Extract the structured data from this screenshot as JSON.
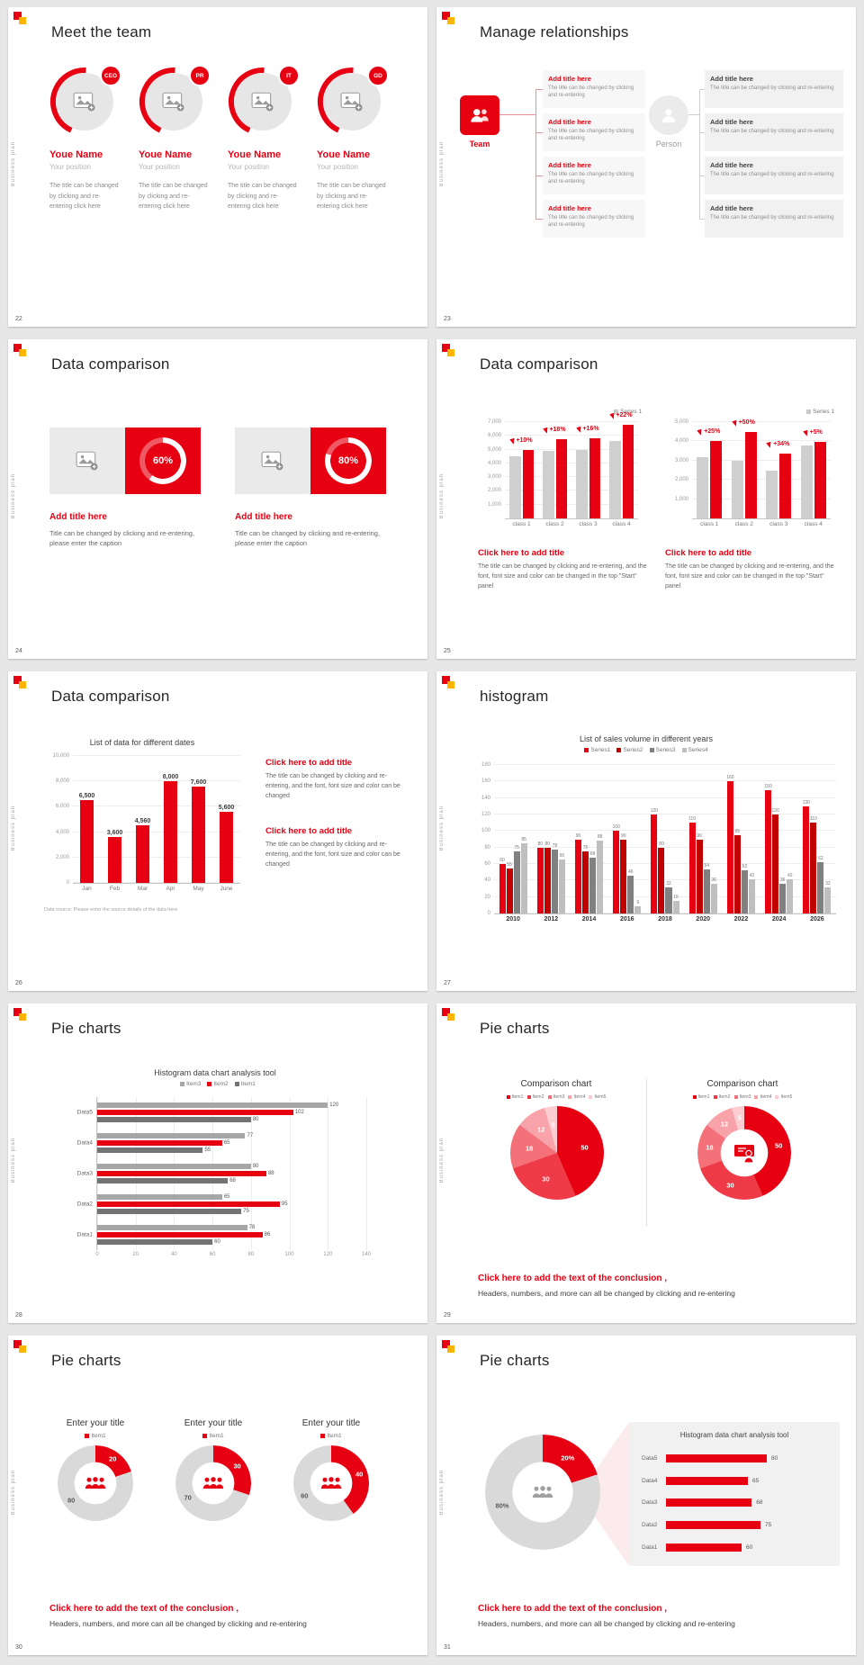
{
  "accent": "#e60012",
  "background": "#e7e7e7",
  "sidebar_label": "Business plan",
  "conclusion": {
    "title": "Click here to add the text of the conclusion ,",
    "body": "Headers, numbers, and more can all be changed by clicking and re-entering"
  },
  "slides": {
    "s22": {
      "page": "22",
      "title": "Meet the team",
      "badges": [
        "CEO",
        "PR",
        "IT",
        "GD"
      ],
      "member_name": "Youe Name",
      "member_position": "Your position",
      "member_caption": "The title can be changed by clicking and re-entering click here"
    },
    "s23": {
      "page": "23",
      "title": "Manage relationships",
      "team_label": "Team",
      "person_label": "Person",
      "block_title": "Add title here",
      "block_caption": "The title can be changed by clicking and re-entering"
    },
    "s24": {
      "page": "24",
      "title": "Data comparison",
      "card_title": "Add title here",
      "card_caption": "Title can be changed by clicking and re-entering, please enter the caption",
      "cards": [
        {
          "percent_label": "60%",
          "ring": {
            "type": "ring",
            "percent": 60
          }
        },
        {
          "percent_label": "80%",
          "ring": {
            "type": "ring",
            "percent": 80
          }
        }
      ]
    },
    "s25": {
      "page": "25",
      "title": "Data comparison",
      "link_title": "Click here to add title",
      "caption": "The title can be changed by clicking and re-entering, and the font, font size and color can be changed in the top \"Start\" panel",
      "charts": [
        {
          "type": "columns",
          "ymax": 7000,
          "yticks": [
            "7,000",
            "6,000",
            "5,000",
            "4,000",
            "3,000",
            "2,000",
            "1,000"
          ],
          "categories": [
            "class 1",
            "class 2",
            "class 3",
            "class 4"
          ],
          "series": [
            {
              "color": "#cfcfcf",
              "values": [
                4500,
                4900,
                5000,
                5600
              ]
            },
            {
              "color": "#e60012",
              "values": [
                4950,
                5780,
                5800,
                6830
              ]
            }
          ],
          "annotations": [
            "+10%",
            "+18%",
            "+16%",
            "+22%"
          ],
          "legend": [
            {
              "label": "Series 1",
              "color": "#c9c9c9"
            }
          ]
        },
        {
          "type": "columns",
          "ymax": 5000,
          "yticks": [
            "5,000",
            "4,000",
            "3,000",
            "2,000",
            "1,000"
          ],
          "categories": [
            "class 1",
            "class 2",
            "class 3",
            "class 4"
          ],
          "series": [
            {
              "color": "#cfcfcf",
              "values": [
                3200,
                3000,
                2500,
                3800
              ]
            },
            {
              "color": "#e60012",
              "values": [
                4000,
                4500,
                3350,
                3990
              ]
            }
          ],
          "annotations": [
            "+25%",
            "+50%",
            "+34%",
            "+5%"
          ],
          "legend": [
            {
              "label": "Series 1",
              "color": "#c9c9c9"
            }
          ]
        }
      ]
    },
    "s26": {
      "page": "26",
      "title": "Data comparison",
      "chart_title": "List of data for different dates",
      "footnote": "Data source: Please enter the source details of the data here",
      "link_title": "Click here to add title",
      "caption": "The title can be changed by clicking and re-entering, and the font, font size and color can be changed",
      "chart": {
        "type": "columns",
        "ymax": 10000,
        "yticks": [
          "10,000",
          "8,000",
          "6,000",
          "4,000",
          "2,000",
          "0"
        ],
        "categories": [
          "Jan",
          "Feb",
          "Mar",
          "Apr",
          "May",
          "June"
        ],
        "series": [
          {
            "color": "#e60012",
            "values": [
              6500,
              3600,
              4560,
              8000,
              7600,
              5600
            ],
            "labels": [
              "6,500",
              "3,600",
              "4,560",
              "8,000",
              "7,600",
              "5,600"
            ]
          }
        ]
      }
    },
    "s27": {
      "page": "27",
      "title": "histogram",
      "chart_title": "List of sales volume in different years",
      "legend": [
        {
          "label": "Series1",
          "color": "#e60012"
        },
        {
          "label": "Series2",
          "color": "#c00000"
        },
        {
          "label": "Series3",
          "color": "#808080"
        },
        {
          "label": "Series4",
          "color": "#bfbfbf"
        }
      ],
      "chart": {
        "type": "columns",
        "ymax": 180,
        "show_labels": true,
        "yticks": [
          "180",
          "160",
          "140",
          "120",
          "100",
          "80",
          "60",
          "40",
          "20",
          "0"
        ],
        "categories": [
          "2010",
          "2012",
          "2014",
          "2016",
          "2018",
          "2020",
          "2022",
          "2024",
          "2026"
        ],
        "series": [
          {
            "color": "#e60012",
            "values": [
              60,
              80,
              90,
              100,
              120,
              110,
              160,
              150,
              130
            ]
          },
          {
            "color": "#c00000",
            "values": [
              55,
              80,
              75,
              90,
              80,
              90,
              95,
              120,
              110
            ]
          },
          {
            "color": "#808080",
            "values": [
              75,
              78,
              68,
              46,
              32,
              54,
              52,
              36,
              62
            ]
          },
          {
            "color": "#bfbfbf",
            "values": [
              85,
              65,
              88,
              9,
              15,
              36,
              42,
              42,
              32
            ]
          }
        ]
      }
    },
    "s28": {
      "page": "28",
      "title": "Pie charts",
      "chart_title": "Histogram data chart analysis tool",
      "legend": [
        {
          "label": "Item3",
          "color": "#a6a6a6"
        },
        {
          "label": "Item2",
          "color": "#e60012"
        },
        {
          "label": "Item1",
          "color": "#737373"
        }
      ],
      "chart": {
        "type": "hbars",
        "xmax": 140,
        "show_labels": true,
        "xticks": [
          "0",
          "20",
          "40",
          "60",
          "80",
          "100",
          "120",
          "140"
        ],
        "categories": [
          "Data5",
          "Data4",
          "Data3",
          "Data2",
          "Data1"
        ],
        "series": [
          {
            "color": "#a6a6a6",
            "values": [
              120,
              77,
              80,
              65,
              78
            ]
          },
          {
            "color": "#e60012",
            "values": [
              102,
              65,
              88,
              95,
              86
            ]
          },
          {
            "color": "#737373",
            "values": [
              80,
              55,
              68,
              75,
              60
            ]
          }
        ]
      }
    },
    "s29": {
      "page": "29",
      "title": "Pie charts",
      "panel_title": "Comparison chart",
      "legend": [
        {
          "label": "Item1",
          "color": "#e60012"
        },
        {
          "label": "Item2",
          "color": "#ef3b47"
        },
        {
          "label": "Item3",
          "color": "#f4717a"
        },
        {
          "label": "Item4",
          "color": "#f8a3a9"
        },
        {
          "label": "Item5",
          "color": "#fbcdd1"
        }
      ],
      "charts": [
        {
          "type": "pie",
          "values": [
            50,
            30,
            18,
            12,
            5
          ],
          "colors": [
            "#e60012",
            "#ef3b47",
            "#f4717a",
            "#f8a3a9",
            "#fbcdd1"
          ],
          "label_color": "#ffffff",
          "label_r": 0.6
        },
        {
          "type": "pie",
          "inner": 0.5,
          "values": [
            50,
            30,
            18,
            12,
            5
          ],
          "colors": [
            "#e60012",
            "#ef3b47",
            "#f4717a",
            "#f8a3a9",
            "#fbcdd1"
          ],
          "label_color": "#ffffff",
          "label_r": 0.75
        }
      ]
    },
    "s30": {
      "page": "30",
      "title": "Pie charts",
      "panel_title": "Enter your title",
      "legend": [
        {
          "label": "Item1",
          "color": "#e60012"
        }
      ],
      "charts": [
        {
          "type": "pie",
          "inner": 0.55,
          "values": [
            20,
            80
          ],
          "colors": [
            "#e60012",
            "#d9d9d9"
          ],
          "labels": [
            "20",
            "80"
          ],
          "label_colors": [
            "#ffffff",
            "#595959"
          ],
          "label_r": 0.78,
          "label_angles": [
            null,
            235
          ]
        },
        {
          "type": "pie",
          "inner": 0.55,
          "values": [
            30,
            70
          ],
          "colors": [
            "#e60012",
            "#d9d9d9"
          ],
          "labels": [
            "30",
            "70"
          ],
          "label_colors": [
            "#ffffff",
            "#595959"
          ],
          "label_r": 0.78,
          "label_angles": [
            null,
            240
          ]
        },
        {
          "type": "pie",
          "inner": 0.55,
          "values": [
            40,
            60
          ],
          "colors": [
            "#e60012",
            "#d9d9d9"
          ],
          "labels": [
            "40",
            "60"
          ],
          "label_colors": [
            "#ffffff",
            "#595959"
          ],
          "label_r": 0.78,
          "label_angles": [
            null,
            245
          ]
        }
      ]
    },
    "s31": {
      "page": "31",
      "title": "Pie charts",
      "donut": {
        "type": "pie",
        "inner": 0.52,
        "values": [
          20,
          80
        ],
        "colors": [
          "#e60012",
          "#d9d9d9"
        ],
        "labels": [
          "20%",
          "80%"
        ],
        "label_colors": [
          "#ffffff",
          "#595959"
        ],
        "label_r": 0.74,
        "label_angles": [
          null,
          252
        ]
      },
      "panel": {
        "type": "rows",
        "title": "Histogram data chart analysis tool",
        "max": 100,
        "rows": [
          {
            "label": "Data5",
            "value": 80
          },
          {
            "label": "Data4",
            "value": 65
          },
          {
            "label": "Data3",
            "value": 68
          },
          {
            "label": "Data2",
            "value": 75
          },
          {
            "label": "Data1",
            "value": 60
          }
        ]
      }
    }
  }
}
